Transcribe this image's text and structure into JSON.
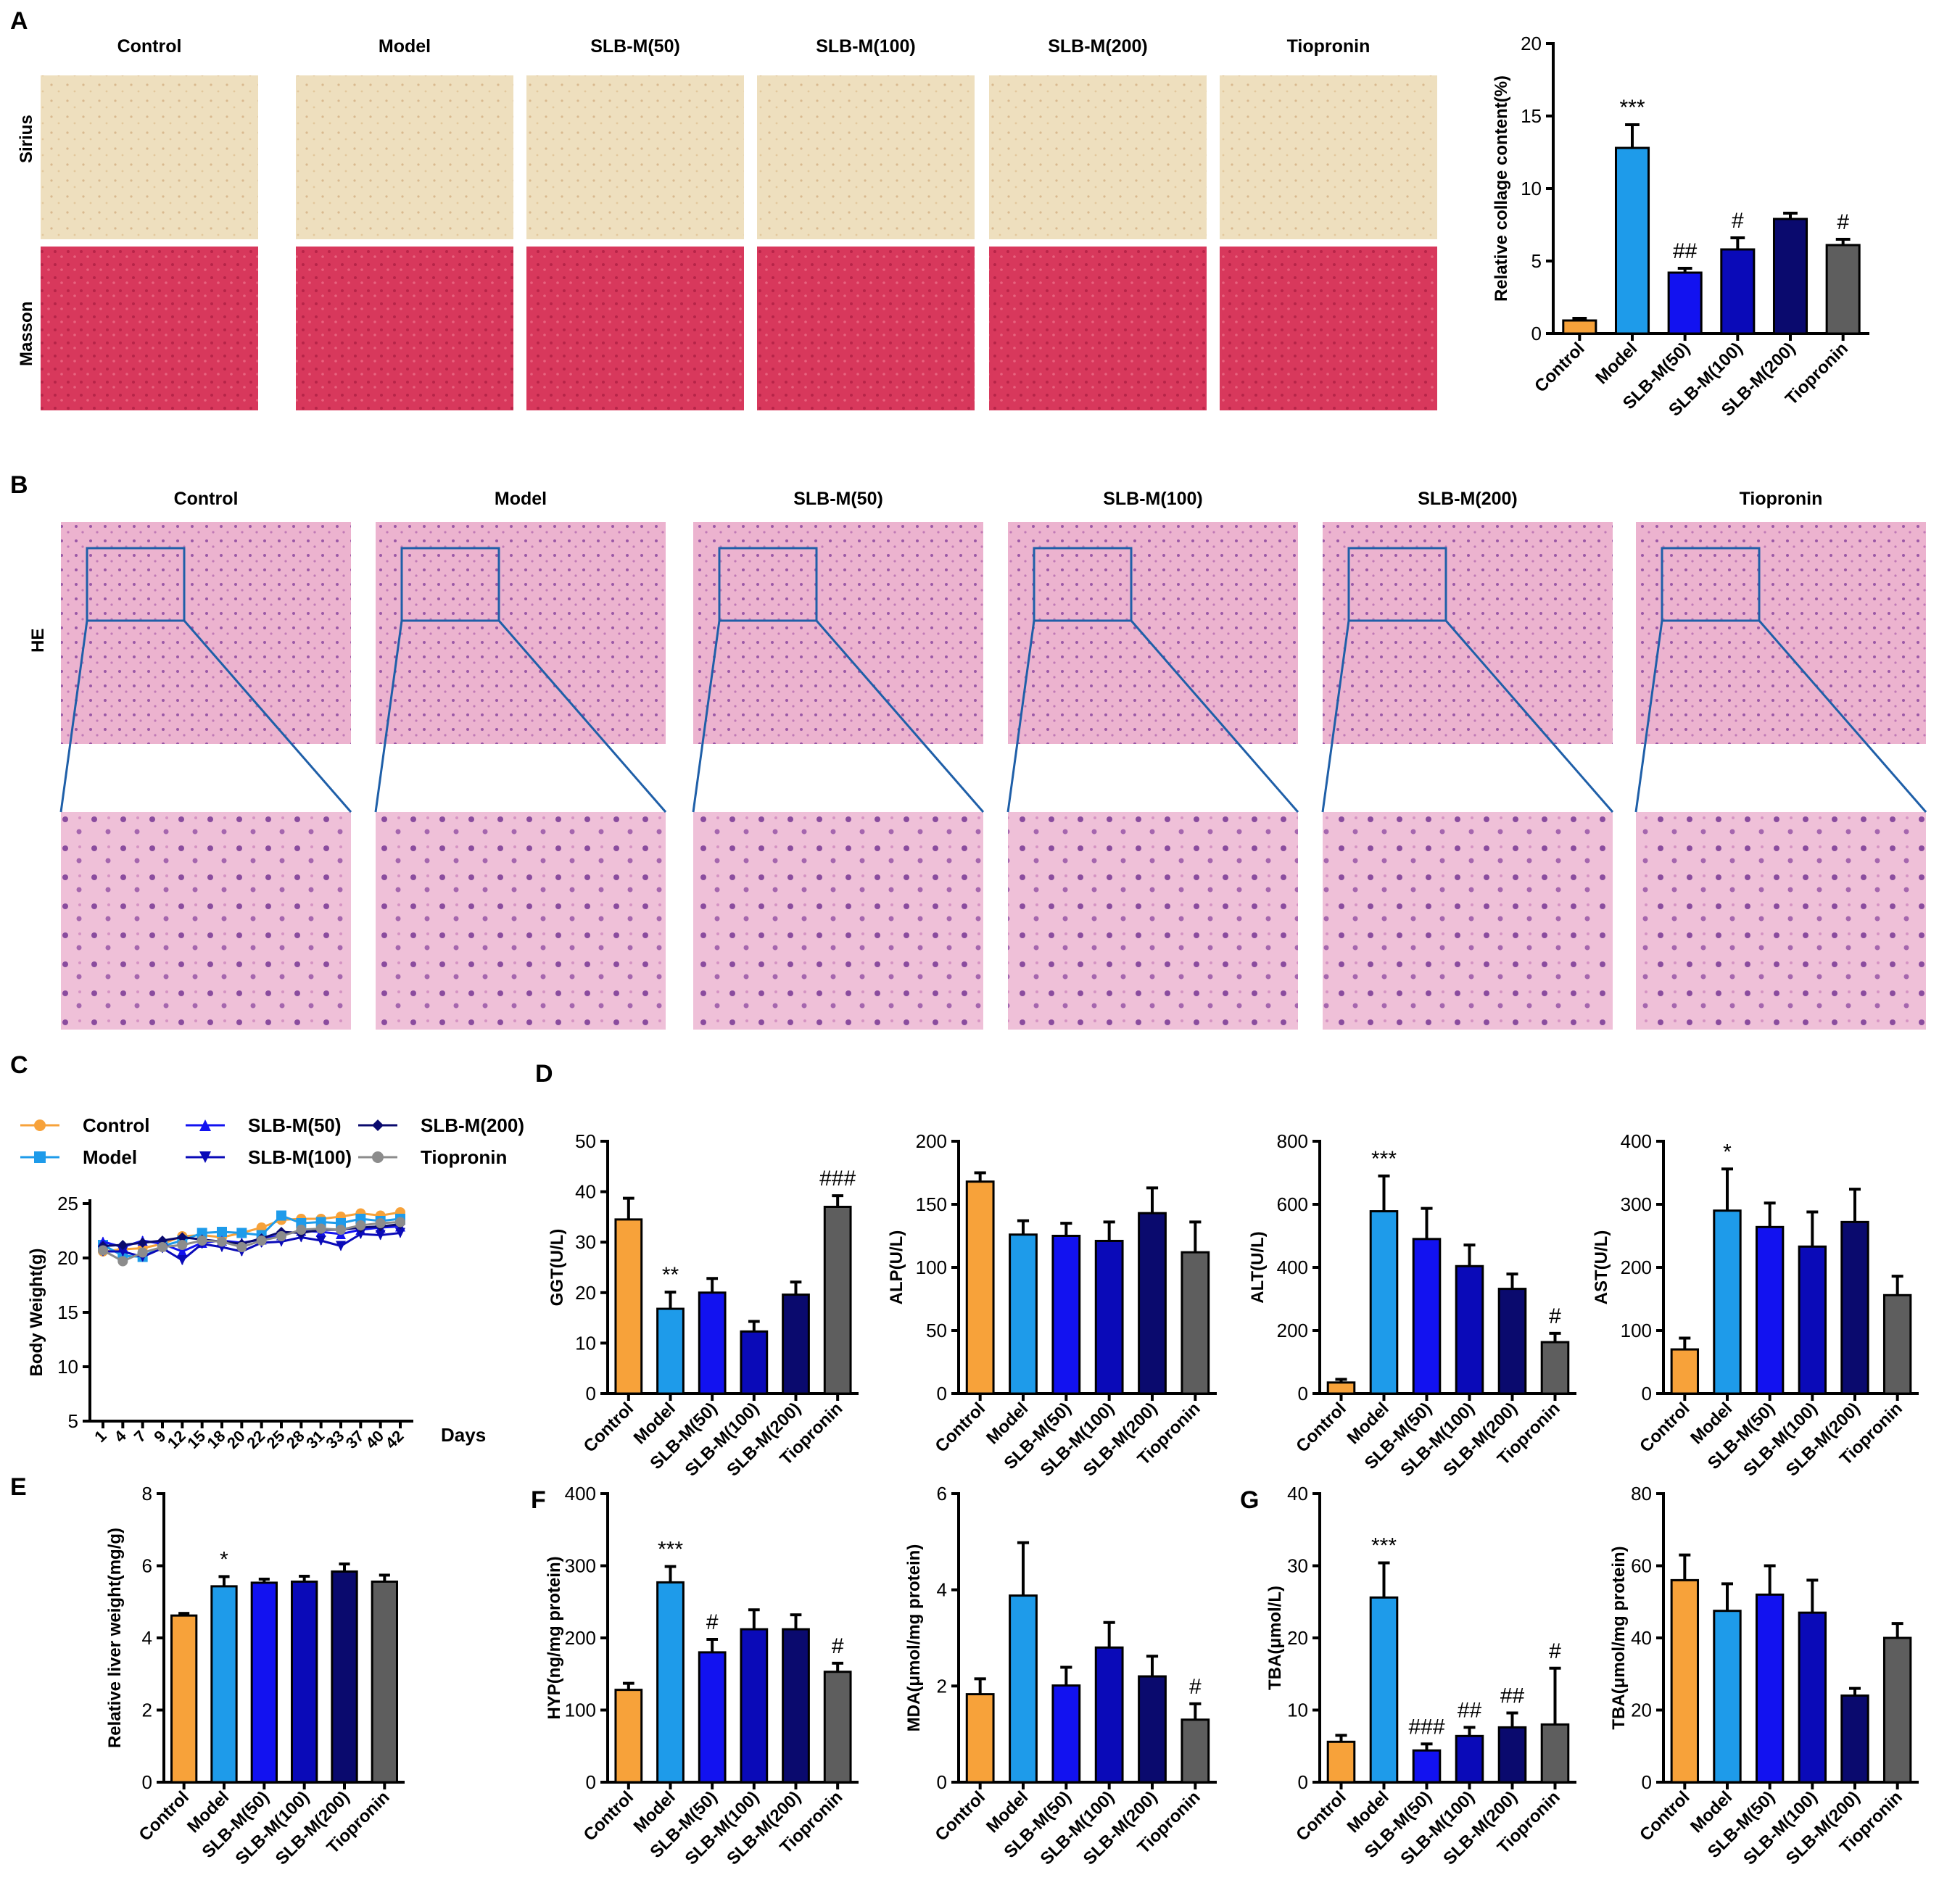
{
  "panels": {
    "A": "A",
    "B": "B",
    "C": "C",
    "D": "D",
    "E": "E",
    "F": "F",
    "G": "G"
  },
  "groups": [
    "Control",
    "Model",
    "SLB-M(50)",
    "SLB-M(100)",
    "SLB-M(200)",
    "Tiopronin"
  ],
  "colors": [
    "#F7A23A",
    "#1E9BEA",
    "#1212F0",
    "#0A0AB8",
    "#0A0A6E",
    "#5E5E5E"
  ],
  "rows": {
    "sirius": "Sirius",
    "masson": "Masson",
    "he": "HE"
  },
  "photos": {
    "sirius": "#EEDCB8",
    "masson": "#D9375A",
    "he": "#E9A9C8"
  },
  "legend": {
    "items": [
      "Control",
      "Model",
      "SLB-M(50)",
      "SLB-M(100)",
      "SLB-M(200)",
      "Tiopronin"
    ]
  },
  "chart_data": [
    {
      "id": "collagen",
      "type": "bar",
      "panel": "A",
      "categories": [
        "Control",
        "Model",
        "SLB-M(50)",
        "SLB-M(100)",
        "SLB-M(200)",
        "Tiopronin"
      ],
      "values": [
        0.9,
        12.8,
        4.2,
        5.8,
        7.9,
        6.1
      ],
      "errors": [
        0.15,
        1.6,
        0.3,
        0.8,
        0.4,
        0.4
      ],
      "annotations": [
        "",
        "***",
        "##",
        "#",
        "",
        "#"
      ],
      "ylabel": "Relative collage content(%)",
      "ylim": [
        0,
        20
      ],
      "yticks": [
        0,
        5,
        10,
        15,
        20
      ]
    },
    {
      "id": "weight",
      "type": "line",
      "panel": "C",
      "x": [
        1,
        4,
        7,
        9,
        12,
        15,
        18,
        20,
        22,
        25,
        28,
        31,
        33,
        37,
        40,
        42
      ],
      "xticklabels": [
        "1",
        "4",
        "7",
        "9",
        "12",
        "15",
        "18",
        "20",
        "22",
        "25",
        "28",
        "31",
        "33",
        "37",
        "40",
        "42"
      ],
      "xlabel": "Days",
      "ylabel": "Body Weight(g)",
      "ylim": [
        5,
        25
      ],
      "yticks": [
        5,
        10,
        15,
        20,
        25
      ],
      "series": [
        {
          "name": "Control",
          "values": [
            20.6,
            20.8,
            20.9,
            21.3,
            22.0,
            22.1,
            21.9,
            22.3,
            22.8,
            23.5,
            23.6,
            23.6,
            23.8,
            24.1,
            23.9,
            24.2
          ]
        },
        {
          "name": "Model",
          "values": [
            21.2,
            20.2,
            20.1,
            21.1,
            21.6,
            22.3,
            22.4,
            22.3,
            22.1,
            23.9,
            23.2,
            23.3,
            23.2,
            23.6,
            23.4,
            23.6
          ]
        },
        {
          "name": "SLB-M(50)",
          "values": [
            21.5,
            21.0,
            21.6,
            21.3,
            20.6,
            21.4,
            21.6,
            21.4,
            21.7,
            22.1,
            22.5,
            22.4,
            22.2,
            22.6,
            22.8,
            22.9
          ]
        },
        {
          "name": "SLB-M(100)",
          "values": [
            20.6,
            20.6,
            20.1,
            20.9,
            19.8,
            21.3,
            21.0,
            20.6,
            21.4,
            21.5,
            21.9,
            21.6,
            21.1,
            22.2,
            22.1,
            22.3
          ]
        },
        {
          "name": "SLB-M(200)",
          "values": [
            21.1,
            21.2,
            21.4,
            21.6,
            21.9,
            21.7,
            21.5,
            21.3,
            21.8,
            22.4,
            22.3,
            22.6,
            22.6,
            22.8,
            22.9,
            23.1
          ]
        },
        {
          "name": "Tiopronin",
          "values": [
            20.7,
            19.7,
            20.5,
            21.0,
            21.2,
            21.6,
            21.5,
            21.0,
            21.6,
            22.0,
            22.6,
            22.7,
            22.6,
            23.0,
            23.2,
            23.3
          ]
        }
      ]
    },
    {
      "id": "ggt",
      "type": "bar",
      "panel": "D",
      "categories": [
        "Control",
        "Model",
        "SLB-M(50)",
        "SLB-M(100)",
        "SLB-M(200)",
        "Tiopronin"
      ],
      "values": [
        34.5,
        16.8,
        20.0,
        12.3,
        19.6,
        37.0
      ],
      "errors": [
        4.2,
        3.3,
        2.8,
        2.0,
        2.5,
        2.2
      ],
      "annotations": [
        "",
        "**",
        "",
        "",
        "",
        "###"
      ],
      "ylabel": "GGT(U/L)",
      "ylim": [
        0,
        50
      ],
      "yticks": [
        0,
        10,
        20,
        30,
        40,
        50
      ]
    },
    {
      "id": "alp",
      "type": "bar",
      "panel": "D",
      "categories": [
        "Control",
        "Model",
        "SLB-M(50)",
        "SLB-M(100)",
        "SLB-M(200)",
        "Tiopronin"
      ],
      "values": [
        168,
        126,
        125,
        121,
        143,
        112
      ],
      "errors": [
        7,
        11,
        10,
        15,
        20,
        24
      ],
      "annotations": [
        "",
        "",
        "",
        "",
        "",
        ""
      ],
      "ylabel": "ALP(U/L)",
      "ylim": [
        0,
        200
      ],
      "yticks": [
        0,
        50,
        100,
        150,
        200
      ]
    },
    {
      "id": "alt",
      "type": "bar",
      "panel": "D",
      "categories": [
        "Control",
        "Model",
        "SLB-M(50)",
        "SLB-M(100)",
        "SLB-M(200)",
        "Tiopronin"
      ],
      "values": [
        35,
        578,
        490,
        404,
        332,
        163
      ],
      "errors": [
        10,
        112,
        97,
        67,
        47,
        28
      ],
      "annotations": [
        "",
        "***",
        "",
        "",
        "",
        "#"
      ],
      "ylabel": "ALT(U/L)",
      "ylim": [
        0,
        800
      ],
      "yticks": [
        0,
        200,
        400,
        600,
        800
      ]
    },
    {
      "id": "ast",
      "type": "bar",
      "panel": "D",
      "categories": [
        "Control",
        "Model",
        "SLB-M(50)",
        "SLB-M(100)",
        "SLB-M(200)",
        "Tiopronin"
      ],
      "values": [
        70,
        290,
        264,
        233,
        272,
        156
      ],
      "errors": [
        18,
        66,
        38,
        55,
        52,
        30
      ],
      "annotations": [
        "",
        "*",
        "",
        "",
        "",
        ""
      ],
      "ylabel": "AST(U/L)",
      "ylim": [
        0,
        400
      ],
      "yticks": [
        0,
        100,
        200,
        300,
        400
      ]
    },
    {
      "id": "liver",
      "type": "bar",
      "panel": "E",
      "categories": [
        "Control",
        "Model",
        "SLB-M(50)",
        "SLB-M(100)",
        "SLB-M(200)",
        "Tiopronin"
      ],
      "values": [
        4.62,
        5.43,
        5.53,
        5.56,
        5.84,
        5.56
      ],
      "errors": [
        0.06,
        0.27,
        0.1,
        0.15,
        0.21,
        0.18
      ],
      "annotations": [
        "",
        "*",
        "",
        "",
        "",
        ""
      ],
      "ylabel": "Relative liver weight(mg/g)",
      "ylim": [
        0,
        8
      ],
      "yticks": [
        0,
        2,
        4,
        6,
        8
      ]
    },
    {
      "id": "hyp",
      "type": "bar",
      "panel": "F",
      "categories": [
        "Control",
        "Model",
        "SLB-M(50)",
        "SLB-M(100)",
        "SLB-M(200)",
        "Tiopronin"
      ],
      "values": [
        128,
        277,
        180,
        212,
        212,
        153
      ],
      "errors": [
        9,
        22,
        18,
        27,
        20,
        12
      ],
      "annotations": [
        "",
        "***",
        "#",
        "",
        "",
        "#"
      ],
      "ylabel": "HYP(ng/mg protein)",
      "ylim": [
        0,
        400
      ],
      "yticks": [
        0,
        100,
        200,
        300,
        400
      ]
    },
    {
      "id": "mda",
      "type": "bar",
      "panel": "F",
      "categories": [
        "Control",
        "Model",
        "SLB-M(50)",
        "SLB-M(100)",
        "SLB-M(200)",
        "Tiopronin"
      ],
      "values": [
        1.83,
        3.88,
        2.01,
        2.8,
        2.2,
        1.3
      ],
      "errors": [
        0.32,
        1.1,
        0.38,
        0.52,
        0.42,
        0.33
      ],
      "annotations": [
        "",
        "",
        "",
        "",
        "",
        "#"
      ],
      "ylabel": "MDA(μmol/mg protein)",
      "ylim": [
        0,
        6
      ],
      "yticks": [
        0,
        2,
        4,
        6
      ]
    },
    {
      "id": "tba1",
      "type": "bar",
      "panel": "G",
      "categories": [
        "Control",
        "Model",
        "SLB-M(50)",
        "SLB-M(100)",
        "SLB-M(200)",
        "Tiopronin"
      ],
      "values": [
        5.6,
        25.6,
        4.4,
        6.4,
        7.6,
        8.0
      ],
      "errors": [
        0.9,
        4.8,
        0.9,
        1.2,
        2.0,
        7.8
      ],
      "annotations": [
        "",
        "***",
        "###",
        "##",
        "##",
        "#"
      ],
      "ylabel": "TBA(μmol/L)",
      "ylim": [
        0,
        40
      ],
      "yticks": [
        0,
        10,
        20,
        30,
        40
      ]
    },
    {
      "id": "tba2",
      "type": "bar",
      "panel": "G",
      "categories": [
        "Control",
        "Model",
        "SLB-M(50)",
        "SLB-M(100)",
        "SLB-M(200)",
        "Tiopronin"
      ],
      "values": [
        56,
        47.5,
        52,
        47,
        24,
        40
      ],
      "errors": [
        7,
        7.5,
        8,
        9,
        2,
        4
      ],
      "annotations": [
        "",
        "",
        "",
        "",
        "",
        ""
      ],
      "ylabel": "TBA(μmol/mg protein)",
      "ylim": [
        0,
        80
      ],
      "yticks": [
        0,
        20,
        40,
        60,
        80
      ]
    }
  ]
}
